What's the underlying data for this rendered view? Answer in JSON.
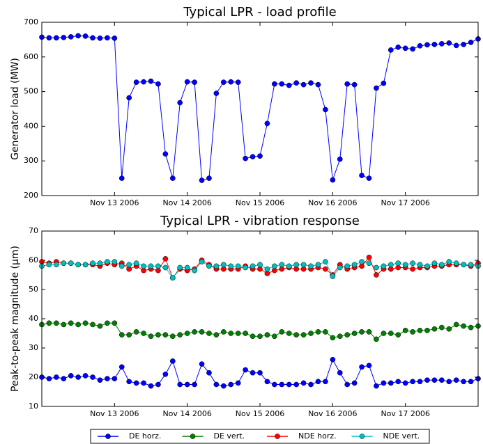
{
  "chart_data": [
    {
      "type": "line",
      "title": "Typical LPR - load profile",
      "y_label": "Generator load (MW)",
      "x": [
        0,
        0.1,
        0.2,
        0.3,
        0.4,
        0.5,
        0.6,
        0.7,
        0.8,
        0.9,
        1,
        1.1,
        1.2,
        1.3,
        1.4,
        1.5,
        1.6,
        1.7,
        1.8,
        1.9,
        2,
        2.1,
        2.2,
        2.3,
        2.4,
        2.5,
        2.6,
        2.7,
        2.8,
        2.9,
        3,
        3.1,
        3.2,
        3.3,
        3.4,
        3.5,
        3.6,
        3.7,
        3.8,
        3.9,
        4,
        4.1,
        4.2,
        4.3,
        4.4,
        4.5,
        4.6,
        4.7,
        4.8,
        4.9,
        5,
        5.1,
        5.2,
        5.3,
        5.4,
        5.5,
        5.6,
        5.7,
        5.8,
        5.9,
        6
      ],
      "values": [
        657,
        655,
        655,
        656,
        658,
        661,
        660,
        655,
        654,
        655,
        654,
        250,
        482,
        527,
        528,
        530,
        522,
        320,
        250,
        468,
        528,
        527,
        244,
        250,
        495,
        527,
        528,
        527,
        307,
        312,
        314,
        408,
        522,
        522,
        518,
        525,
        520,
        525,
        520,
        448,
        245,
        305,
        522,
        520,
        258,
        250,
        510,
        524,
        620,
        628,
        625,
        623,
        632,
        635,
        636,
        638,
        640,
        633,
        636,
        642,
        652
      ],
      "color": "#0000ff",
      "xlim": [
        0,
        6
      ],
      "xticks": [
        {
          "value": 1,
          "label": "Nov 13 2006"
        },
        {
          "value": 2,
          "label": "Nov 14 2006"
        },
        {
          "value": 3,
          "label": "Nov 15 2006"
        },
        {
          "value": 4,
          "label": "Nov 16 2006"
        },
        {
          "value": 5,
          "label": "Nov 17 2006"
        }
      ],
      "ylim": [
        200,
        700
      ],
      "yticks": [
        200,
        300,
        400,
        500,
        600,
        700
      ]
    },
    {
      "type": "line",
      "title": "Typical LPR - vibration response",
      "y_label": "Peak-to-peak magnitude (μm)",
      "x": [
        0,
        0.1,
        0.2,
        0.3,
        0.4,
        0.5,
        0.6,
        0.7,
        0.8,
        0.9,
        1,
        1.1,
        1.2,
        1.3,
        1.4,
        1.5,
        1.6,
        1.7,
        1.8,
        1.9,
        2,
        2.1,
        2.2,
        2.3,
        2.4,
        2.5,
        2.6,
        2.7,
        2.8,
        2.9,
        3,
        3.1,
        3.2,
        3.3,
        3.4,
        3.5,
        3.6,
        3.7,
        3.8,
        3.9,
        4,
        4.1,
        4.2,
        4.3,
        4.4,
        4.5,
        4.6,
        4.7,
        4.8,
        4.9,
        5,
        5.1,
        5.2,
        5.3,
        5.4,
        5.5,
        5.6,
        5.7,
        5.8,
        5.9,
        6
      ],
      "series": [
        {
          "name": "DE horz.",
          "color": "#0000ff",
          "values": [
            20,
            19.5,
            20,
            19.5,
            20.5,
            20,
            20.5,
            20,
            19,
            19.5,
            19.5,
            23.5,
            18.5,
            18,
            18,
            17,
            17.5,
            21,
            25.5,
            17.5,
            17.5,
            17.5,
            24.5,
            21.5,
            17.5,
            17,
            17.5,
            18,
            22.5,
            21.5,
            21.5,
            18.5,
            17.5,
            17.5,
            17.5,
            17.5,
            18,
            17.5,
            18.5,
            18.5,
            26,
            21.5,
            17.5,
            18,
            23.5,
            24,
            17,
            18,
            18,
            18.5,
            18,
            18.5,
            18.5,
            19,
            19,
            19,
            18.5,
            19,
            18.5,
            18.5,
            19.5
          ]
        },
        {
          "name": "DE vert.",
          "color": "#007f00",
          "values": [
            38,
            38.5,
            38.5,
            38,
            38.5,
            38,
            38.5,
            38,
            37.5,
            38.5,
            38.5,
            34.5,
            34.5,
            35.5,
            35,
            34,
            34.5,
            34.5,
            34,
            34.5,
            35,
            35.5,
            35.5,
            35,
            34.5,
            35.5,
            35,
            35,
            35,
            34,
            34,
            34.5,
            34,
            35.5,
            35,
            34.5,
            34.5,
            35,
            35.5,
            35.5,
            33.5,
            34,
            34.5,
            35,
            35.5,
            35.5,
            33,
            35,
            35,
            34.5,
            36,
            35.5,
            36,
            36,
            36.5,
            37,
            36.5,
            38,
            37.5,
            37,
            37.5
          ]
        },
        {
          "name": "NDE horz.",
          "color": "#ff0000",
          "values": [
            59.5,
            59,
            59.5,
            59,
            59,
            58.5,
            58.5,
            58.5,
            58,
            59,
            58.5,
            59,
            57,
            58,
            56.5,
            57,
            56.5,
            60.5,
            54,
            57,
            56.5,
            57,
            60,
            58.5,
            57,
            57,
            57,
            57,
            58,
            57,
            57,
            55.5,
            56.5,
            57,
            57.5,
            57,
            57,
            57,
            57.5,
            57,
            55,
            58.5,
            57,
            57.5,
            58,
            61,
            55,
            57,
            57,
            57.5,
            57.5,
            57,
            57.5,
            57.5,
            58,
            58,
            58.5,
            58.5,
            58.5,
            58,
            59
          ]
        },
        {
          "name": "NDE vert.",
          "color": "#00bfbf",
          "values": [
            58,
            58.5,
            58.5,
            59,
            59,
            58.5,
            58.5,
            59,
            59,
            59.5,
            59.5,
            58,
            58.5,
            59,
            58,
            58,
            58,
            57.5,
            54,
            57.5,
            57.5,
            56.5,
            59.5,
            58,
            58,
            58.5,
            58,
            58,
            57.5,
            58,
            58.5,
            57,
            58,
            58.5,
            58,
            58.5,
            58.5,
            58,
            58.5,
            59.5,
            54.5,
            57.5,
            58,
            58.5,
            59.5,
            59,
            57.5,
            58,
            58.5,
            59,
            58.5,
            59,
            58.5,
            58,
            59,
            58.5,
            59.5,
            59,
            58.5,
            58.5,
            58
          ]
        }
      ],
      "xlim": [
        0,
        6
      ],
      "xticks": [
        {
          "value": 1,
          "label": "Nov 13 2006"
        },
        {
          "value": 2,
          "label": "Nov 14 2006"
        },
        {
          "value": 3,
          "label": "Nov 15 2006"
        },
        {
          "value": 4,
          "label": "Nov 16 2006"
        },
        {
          "value": 5,
          "label": "Nov 17 2006"
        }
      ],
      "ylim": [
        10,
        70
      ],
      "yticks": [
        10,
        20,
        30,
        40,
        50,
        60,
        70
      ],
      "legend": "bottom"
    }
  ]
}
